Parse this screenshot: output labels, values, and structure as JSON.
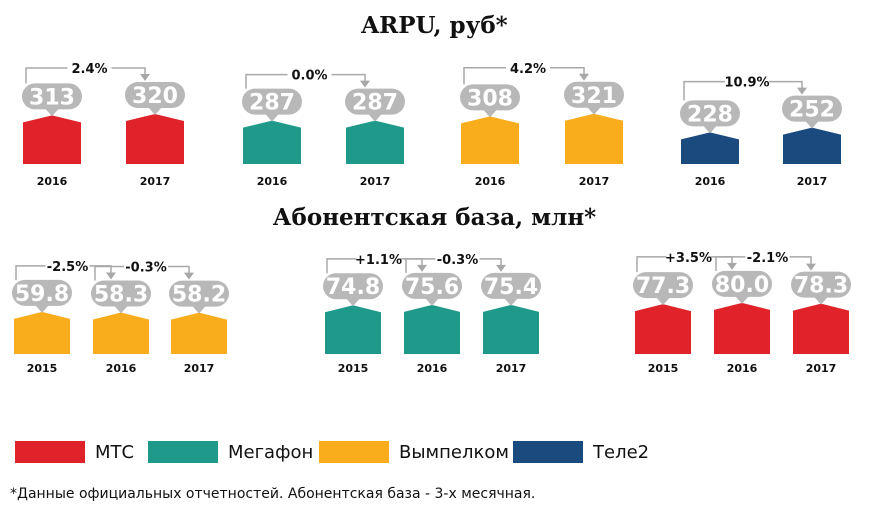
{
  "colors": {
    "mts": "#e0232b",
    "megafon": "#1f9a8a",
    "vympelkom": "#f9ad1d",
    "tele2": "#1b4a7e",
    "bubble": "#b8b8b8",
    "connector": "#a8a8a8"
  },
  "titles": {
    "arpu": "ARPU, руб*",
    "subscribers": "Абонентская база, млн*"
  },
  "legend": [
    {
      "label": "МТС",
      "color": "#e0232b"
    },
    {
      "label": "Мегафон",
      "color": "#1f9a8a"
    },
    {
      "label": "Вымпелком",
      "color": "#f9ad1d"
    },
    {
      "label": "Теле2",
      "color": "#1b4a7e"
    }
  ],
  "footnote": "*Данные официальных отчетностей. Абонентская база - 3-х месячная.",
  "chart_data": [
    {
      "type": "bar",
      "title": "ARPU, руб*",
      "operator": "МТС",
      "color": "#e0232b",
      "categories": [
        "2016",
        "2017"
      ],
      "values": [
        313,
        320
      ],
      "value_labels": [
        "313",
        "320"
      ],
      "changes": [
        "2.4%"
      ]
    },
    {
      "type": "bar",
      "title": "ARPU, руб*",
      "operator": "Мегафон",
      "color": "#1f9a8a",
      "categories": [
        "2016",
        "2017"
      ],
      "values": [
        287,
        287
      ],
      "value_labels": [
        "287",
        "287"
      ],
      "changes": [
        "0.0%"
      ]
    },
    {
      "type": "bar",
      "title": "ARPU, руб*",
      "operator": "Вымпелком",
      "color": "#f9ad1d",
      "categories": [
        "2016",
        "2017"
      ],
      "values": [
        308,
        321
      ],
      "value_labels": [
        "308",
        "321"
      ],
      "changes": [
        "4.2%"
      ]
    },
    {
      "type": "bar",
      "title": "ARPU, руб*",
      "operator": "Теле2",
      "color": "#1b4a7e",
      "categories": [
        "2016",
        "2017"
      ],
      "values": [
        228,
        252
      ],
      "value_labels": [
        "228",
        "252"
      ],
      "changes": [
        "10.9%"
      ]
    },
    {
      "type": "bar",
      "title": "Абонентская база, млн*",
      "operator": "Вымпелком",
      "color": "#f9ad1d",
      "categories": [
        "2015",
        "2016",
        "2017"
      ],
      "values": [
        59.8,
        58.3,
        58.2
      ],
      "value_labels": [
        "59.8",
        "58.3",
        "58.2"
      ],
      "changes": [
        "-2.5%",
        "-0.3%"
      ]
    },
    {
      "type": "bar",
      "title": "Абонентская база, млн*",
      "operator": "Мегафон",
      "color": "#1f9a8a",
      "categories": [
        "2015",
        "2016",
        "2017"
      ],
      "values": [
        74.8,
        75.6,
        75.4
      ],
      "value_labels": [
        "74.8",
        "75.6",
        "75.4"
      ],
      "changes": [
        "+1.1%",
        "-0.3%"
      ]
    },
    {
      "type": "bar",
      "title": "Абонентская база, млн*",
      "operator": "МТС",
      "color": "#e0232b",
      "categories": [
        "2015",
        "2016",
        "2017"
      ],
      "values": [
        77.3,
        80.0,
        78.3
      ],
      "value_labels": [
        "77.3",
        "80.0",
        "78.3"
      ],
      "changes": [
        "+3.5%",
        "-2.1%"
      ]
    }
  ]
}
